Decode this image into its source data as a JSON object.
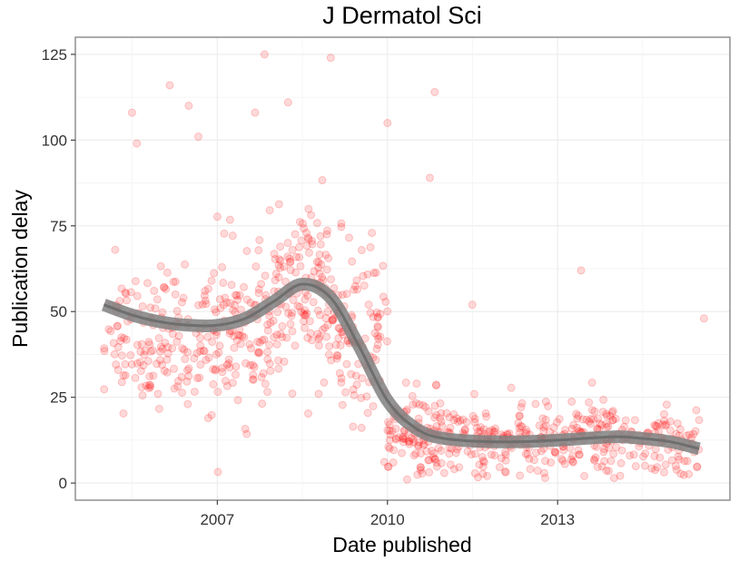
{
  "chart_data": {
    "type": "scatter",
    "title": "J Dermatol Sci",
    "xlabel": "Date published",
    "ylabel": "Publication delay",
    "x_ticks": [
      "2007",
      "2010",
      "2013"
    ],
    "y_ticks": [
      0,
      25,
      50,
      75,
      100,
      125
    ],
    "xlim": [
      "2004-07-01",
      "2016-01-15"
    ],
    "ylim": [
      -5,
      130
    ],
    "grid": true,
    "legend": "none",
    "point_color": "#ff0000",
    "point_alpha": 0.15,
    "smooth_color": "#808080",
    "smooth": {
      "type": "line",
      "points": [
        [
          "2005-01-01",
          52
        ],
        [
          "2005-07-01",
          49
        ],
        [
          "2006-01-01",
          47
        ],
        [
          "2006-07-01",
          46
        ],
        [
          "2007-01-01",
          46
        ],
        [
          "2007-07-01",
          48
        ],
        [
          "2008-01-01",
          53
        ],
        [
          "2008-07-01",
          58
        ],
        [
          "2009-01-01",
          54
        ],
        [
          "2009-07-01",
          40
        ],
        [
          "2010-01-01",
          24
        ],
        [
          "2010-07-01",
          16
        ],
        [
          "2011-01-01",
          13
        ],
        [
          "2012-01-01",
          12
        ],
        [
          "2013-01-01",
          12.5
        ],
        [
          "2014-01-01",
          13.5
        ],
        [
          "2014-07-01",
          13
        ],
        [
          "2015-01-01",
          12
        ],
        [
          "2015-07-01",
          10
        ]
      ]
    },
    "notable_points": [
      [
        "2005-03-15",
        68
      ],
      [
        "2005-07-01",
        108
      ],
      [
        "2005-08-01",
        99
      ],
      [
        "2006-03-01",
        116
      ],
      [
        "2006-07-01",
        110
      ],
      [
        "2006-09-01",
        101
      ],
      [
        "2007-09-01",
        108
      ],
      [
        "2007-11-01",
        125
      ],
      [
        "2008-04-01",
        111
      ],
      [
        "2009-01-01",
        124
      ],
      [
        "2010-01-01",
        105
      ],
      [
        "2010-11-01",
        114
      ],
      [
        "2010-10-01",
        89
      ],
      [
        "2011-07-01",
        52
      ],
      [
        "2013-06-01",
        62
      ],
      [
        "2015-08-01",
        48
      ]
    ],
    "clusters": [
      {
        "x": [
          "2005-01-01",
          "2006-01-01"
        ],
        "y_center": 42,
        "y_sd": 9,
        "n": 80
      },
      {
        "x": [
          "2006-01-01",
          "2007-01-01"
        ],
        "y_center": 42,
        "y_sd": 10,
        "n": 90
      },
      {
        "x": [
          "2007-01-01",
          "2008-01-01"
        ],
        "y_center": 45,
        "y_sd": 12,
        "n": 110
      },
      {
        "x": [
          "2008-01-01",
          "2009-01-01"
        ],
        "y_center": 55,
        "y_sd": 12,
        "n": 130
      },
      {
        "x": [
          "2009-01-01",
          "2010-01-01"
        ],
        "y_center": 42,
        "y_sd": 14,
        "n": 110
      },
      {
        "x": [
          "2010-01-01",
          "2011-01-01"
        ],
        "y_center": 14,
        "y_sd": 6,
        "n": 110
      },
      {
        "x": [
          "2011-01-01",
          "2012-01-01"
        ],
        "y_center": 12,
        "y_sd": 5,
        "n": 80
      },
      {
        "x": [
          "2012-01-01",
          "2013-01-01"
        ],
        "y_center": 12,
        "y_sd": 5,
        "n": 80
      },
      {
        "x": [
          "2013-01-01",
          "2014-01-01"
        ],
        "y_center": 14,
        "y_sd": 6,
        "n": 90
      },
      {
        "x": [
          "2014-01-01",
          "2015-07-01"
        ],
        "y_center": 12,
        "y_sd": 5,
        "n": 90
      }
    ]
  }
}
